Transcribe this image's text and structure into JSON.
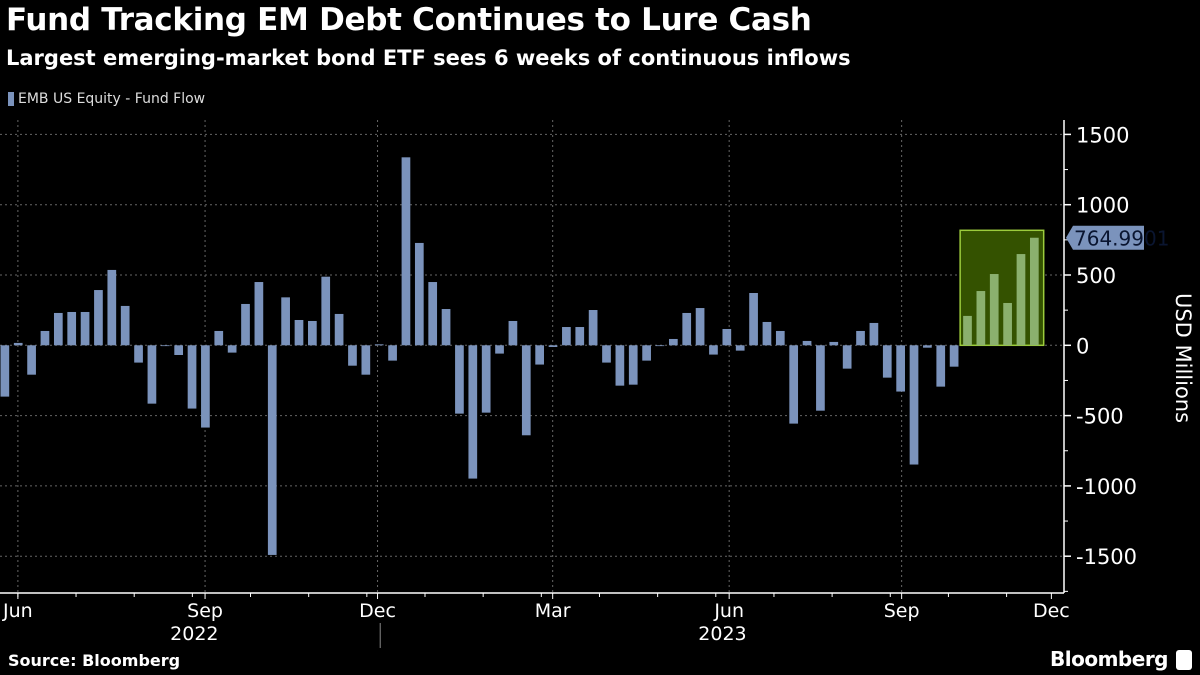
{
  "header": {
    "title": "Fund Tracking EM Debt Continues to Lure Cash",
    "subtitle": "Largest emerging-market bond ETF sees 6 weeks of continuous inflows"
  },
  "footer": {
    "source": "Source: Bloomberg",
    "brand": "Bloomberg"
  },
  "colors": {
    "bar": "#7b93bc",
    "highlight_fill": "#345200",
    "highlight_border": "#9ccc3c",
    "highlight_bar": "#8bb06e",
    "label_bg": "#7b93bc"
  },
  "chart_data": {
    "type": "bar",
    "title": "Fund Tracking EM Debt Continues to Lure Cash",
    "legend": [
      "EMB US Equity - Fund Flow"
    ],
    "legend_placement": "top-left",
    "ylabel": "USD Millions",
    "ylim": [
      -1760,
      1600
    ],
    "yticks": [
      1500,
      1000,
      500,
      0,
      -500,
      -1000,
      -1500
    ],
    "ytick_labels": [
      "1500",
      "1000",
      "500",
      "0",
      "-500",
      "-1000",
      "-1500"
    ],
    "grid": true,
    "xticks": [
      {
        "label": "Jun",
        "week_index": 1.3
      },
      {
        "label": "Sep",
        "week_index": 15.3
      },
      {
        "label": "Dec",
        "week_index": 28.2
      },
      {
        "label": "Mar",
        "week_index": 41.3
      },
      {
        "label": "Jun",
        "week_index": 54.5
      },
      {
        "label": "Sep",
        "week_index": 67.4
      },
      {
        "label": "Dec",
        "week_index": 78.6
      }
    ],
    "years": [
      {
        "label": "2022",
        "week_index": 14.5
      },
      {
        "label": "2023",
        "week_index": 54
      }
    ],
    "year_divider_week_index": 28.4,
    "frequency": "weekly",
    "values": [
      -365,
      17,
      -209,
      102,
      230,
      237,
      237,
      393,
      536,
      280,
      -123,
      -415,
      -3,
      -69,
      -450,
      -585,
      102,
      -52,
      294,
      450,
      -1491,
      341,
      180,
      173,
      488,
      223,
      -145,
      -209,
      7,
      -109,
      1337,
      728,
      450,
      258,
      -486,
      -948,
      -479,
      -59,
      173,
      -640,
      -137,
      -12,
      130,
      130,
      251,
      -123,
      -287,
      -280,
      -109,
      -2,
      45,
      230,
      265,
      -66,
      116,
      -38,
      372,
      166,
      102,
      -557,
      31,
      -465,
      24,
      -166,
      102,
      159,
      -230,
      -329,
      -848,
      -17,
      -294,
      -152,
      209,
      386,
      507,
      301,
      649,
      764.9901
    ],
    "highlight": {
      "from_index": 72,
      "to_index": 77,
      "upper_value": 818
    },
    "last_value_label": "764.9901"
  }
}
